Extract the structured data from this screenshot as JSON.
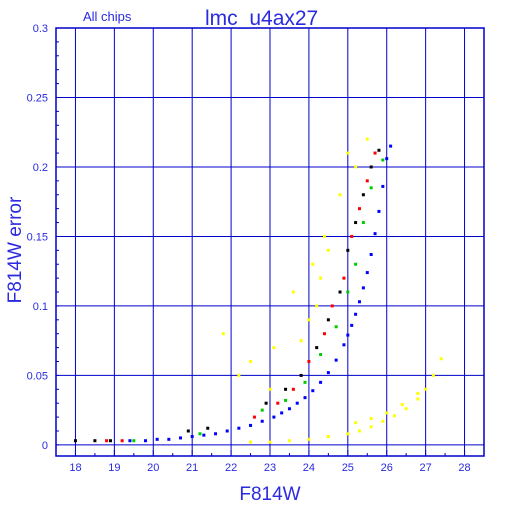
{
  "header": {
    "left_label": "All chips",
    "title": "lmc_u4ax27"
  },
  "colors": {
    "frame": "#0000cc",
    "text": "#2a2ae0",
    "grid": "#0000cc",
    "series": [
      "#000000",
      "#ff0000",
      "#00cc00",
      "#0000ff",
      "#ffff00"
    ]
  },
  "chart_data": {
    "type": "scatter",
    "title": "lmc_u4ax27",
    "subtitle": "All chips",
    "xlabel": "F814W",
    "ylabel": "F814W error",
    "xlim": [
      17.5,
      28.5
    ],
    "ylim": [
      -0.008,
      0.3
    ],
    "grid": true,
    "legend": "none",
    "x_ticks": [
      "18",
      "19",
      "20",
      "21",
      "22",
      "23",
      "24",
      "25",
      "26",
      "27",
      "28"
    ],
    "y_ticks": [
      "0",
      "0.05",
      "0.1",
      "0.15",
      "0.2",
      "0.25",
      "0.3"
    ],
    "x_tick_values": [
      18,
      19,
      20,
      21,
      22,
      23,
      24,
      25,
      26,
      27,
      28
    ],
    "y_tick_values": [
      0,
      0.05,
      0.1,
      0.15,
      0.2,
      0.25,
      0.3
    ],
    "series": [
      {
        "color": "#0000ff",
        "points": [
          [
            19.4,
            0.003
          ],
          [
            19.8,
            0.003
          ],
          [
            20.1,
            0.004
          ],
          [
            20.4,
            0.004
          ],
          [
            20.7,
            0.005
          ],
          [
            21.0,
            0.006
          ],
          [
            21.3,
            0.007
          ],
          [
            21.6,
            0.008
          ],
          [
            21.9,
            0.01
          ],
          [
            22.2,
            0.012
          ],
          [
            22.5,
            0.014
          ],
          [
            22.8,
            0.017
          ],
          [
            23.1,
            0.02
          ],
          [
            23.3,
            0.023
          ],
          [
            23.5,
            0.026
          ],
          [
            23.7,
            0.03
          ],
          [
            23.9,
            0.034
          ],
          [
            24.1,
            0.039
          ],
          [
            24.3,
            0.045
          ],
          [
            24.5,
            0.052
          ],
          [
            24.7,
            0.061
          ],
          [
            24.9,
            0.072
          ],
          [
            25.0,
            0.079
          ],
          [
            25.1,
            0.086
          ],
          [
            25.2,
            0.094
          ],
          [
            25.3,
            0.103
          ],
          [
            25.4,
            0.113
          ],
          [
            25.5,
            0.124
          ],
          [
            25.6,
            0.137
          ],
          [
            25.7,
            0.152
          ],
          [
            25.8,
            0.168
          ],
          [
            25.9,
            0.186
          ],
          [
            26.0,
            0.206
          ],
          [
            26.1,
            0.215
          ]
        ]
      },
      {
        "color": "#000000",
        "points": [
          [
            18.0,
            0.003
          ],
          [
            18.5,
            0.003
          ],
          [
            18.9,
            0.003
          ],
          [
            20.9,
            0.01
          ],
          [
            21.4,
            0.012
          ],
          [
            22.9,
            0.03
          ],
          [
            23.4,
            0.04
          ],
          [
            23.8,
            0.05
          ],
          [
            24.2,
            0.07
          ],
          [
            24.5,
            0.09
          ],
          [
            24.8,
            0.11
          ],
          [
            25.0,
            0.14
          ],
          [
            25.2,
            0.16
          ],
          [
            25.4,
            0.18
          ],
          [
            25.6,
            0.2
          ],
          [
            25.8,
            0.212
          ]
        ]
      },
      {
        "color": "#ff0000",
        "points": [
          [
            18.8,
            0.003
          ],
          [
            19.2,
            0.003
          ],
          [
            22.6,
            0.02
          ],
          [
            23.2,
            0.03
          ],
          [
            23.6,
            0.04
          ],
          [
            24.0,
            0.06
          ],
          [
            24.4,
            0.08
          ],
          [
            24.6,
            0.1
          ],
          [
            24.9,
            0.12
          ],
          [
            25.1,
            0.15
          ],
          [
            25.3,
            0.17
          ],
          [
            25.5,
            0.19
          ],
          [
            25.7,
            0.21
          ]
        ]
      },
      {
        "color": "#00cc00",
        "points": [
          [
            19.5,
            0.003
          ],
          [
            21.2,
            0.008
          ],
          [
            22.8,
            0.025
          ],
          [
            23.4,
            0.032
          ],
          [
            23.9,
            0.045
          ],
          [
            24.3,
            0.065
          ],
          [
            24.7,
            0.085
          ],
          [
            25.0,
            0.11
          ],
          [
            25.2,
            0.13
          ],
          [
            25.4,
            0.16
          ],
          [
            25.6,
            0.185
          ],
          [
            25.9,
            0.205
          ]
        ]
      },
      {
        "color": "#ffff00",
        "points": [
          [
            22.5,
            0.002
          ],
          [
            23.0,
            0.002
          ],
          [
            23.5,
            0.003
          ],
          [
            24.0,
            0.004
          ],
          [
            24.5,
            0.006
          ],
          [
            25.0,
            0.008
          ],
          [
            25.3,
            0.01
          ],
          [
            25.6,
            0.013
          ],
          [
            25.9,
            0.017
          ],
          [
            26.2,
            0.021
          ],
          [
            26.5,
            0.026
          ],
          [
            26.8,
            0.033
          ],
          [
            27.0,
            0.04
          ],
          [
            27.2,
            0.05
          ],
          [
            27.4,
            0.062
          ],
          [
            25.2,
            0.016
          ],
          [
            25.6,
            0.019
          ],
          [
            26.0,
            0.023
          ],
          [
            26.4,
            0.029
          ],
          [
            26.8,
            0.037
          ],
          [
            24.0,
            0.09
          ],
          [
            24.3,
            0.12
          ],
          [
            24.5,
            0.14
          ],
          [
            24.2,
            0.1
          ],
          [
            23.8,
            0.075
          ],
          [
            23.0,
            0.04
          ],
          [
            22.5,
            0.06
          ],
          [
            21.8,
            0.08
          ],
          [
            23.6,
            0.11
          ],
          [
            24.1,
            0.13
          ],
          [
            24.4,
            0.15
          ],
          [
            24.8,
            0.18
          ],
          [
            25.2,
            0.2
          ],
          [
            25.5,
            0.22
          ],
          [
            25.0,
            0.21
          ],
          [
            22.2,
            0.05
          ],
          [
            23.1,
            0.07
          ]
        ]
      }
    ]
  }
}
